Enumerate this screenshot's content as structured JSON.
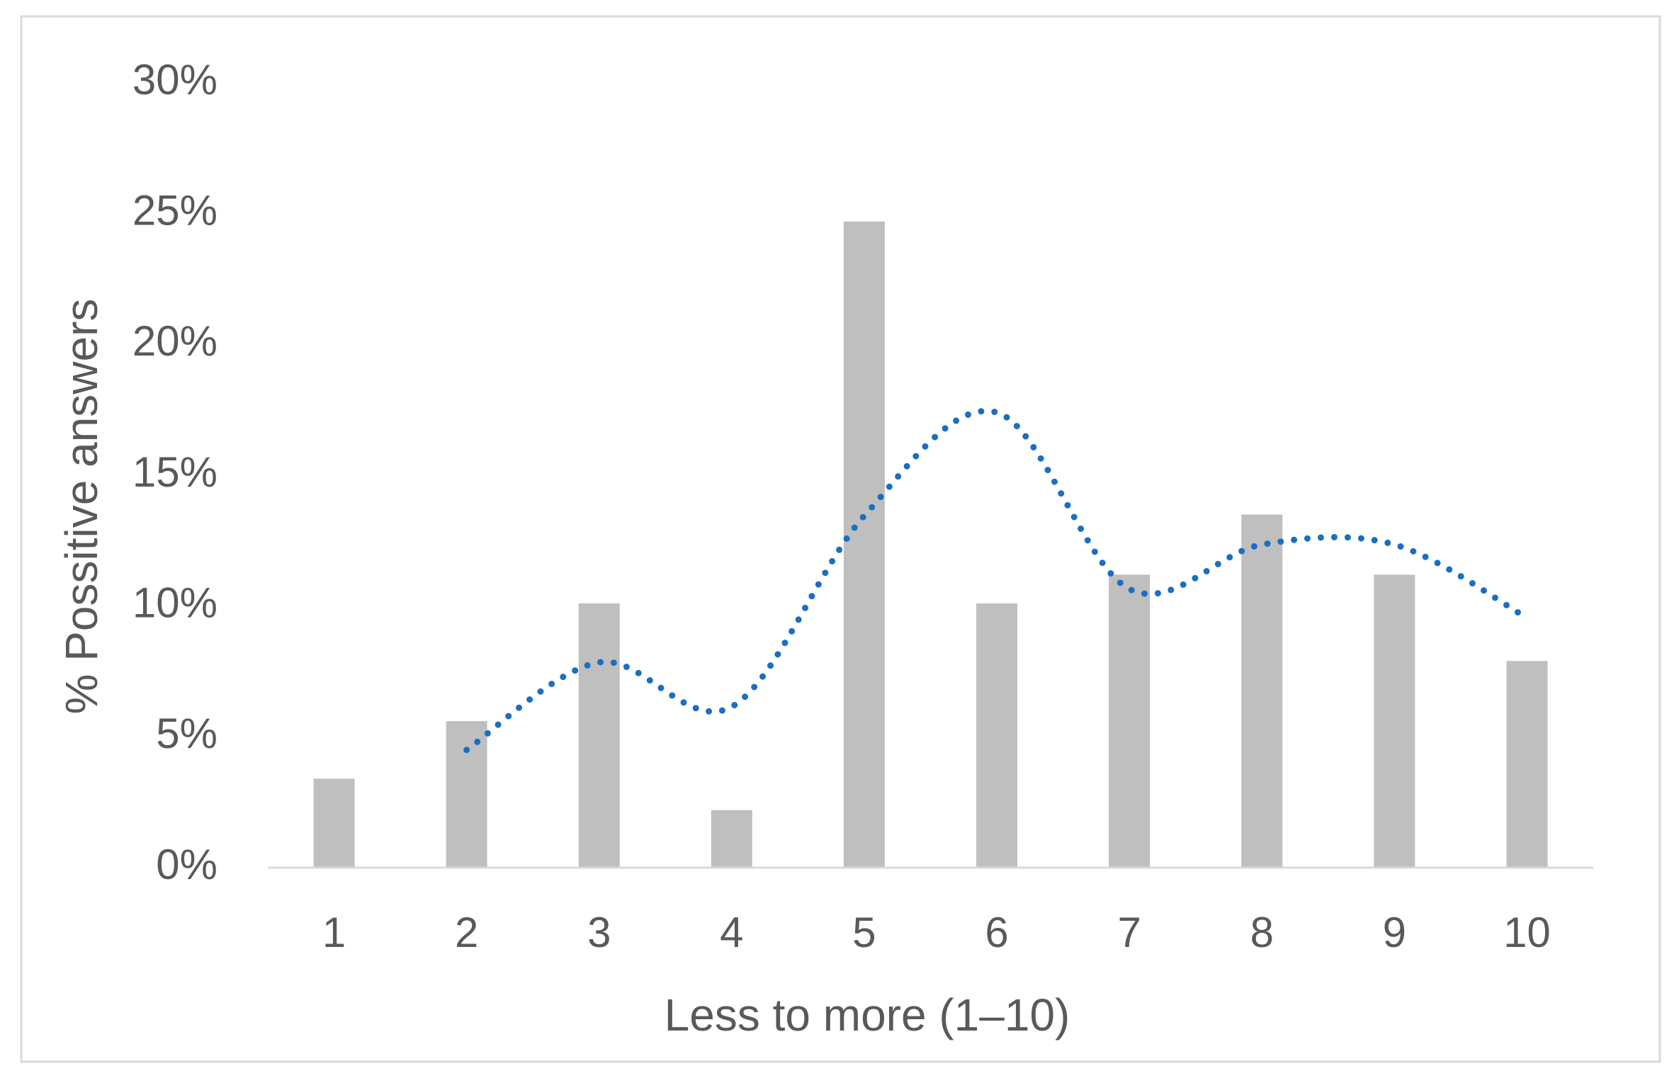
{
  "chart_data": {
    "type": "bar",
    "x_label": "Less to more (1–10)",
    "y_label": "% Possitive answers",
    "categories": [
      "1",
      "2",
      "3",
      "4",
      "5",
      "6",
      "7",
      "8",
      "9",
      "10"
    ],
    "series": [
      {
        "type": "bar",
        "color": "#bfbfbf",
        "values": [
          3.4,
          5.6,
          10.1,
          2.2,
          24.7,
          10.1,
          11.2,
          13.5,
          11.2,
          7.9
        ]
      },
      {
        "type": "line",
        "color": "#1b6ec2",
        "values": [
          null,
          4.5,
          7.85,
          6.15,
          13.45,
          17.4,
          10.65,
          12.35,
          12.35,
          9.55
        ]
      }
    ],
    "ylim": [
      0,
      30
    ],
    "yticks": [
      {
        "value": 0,
        "label": "0%"
      },
      {
        "value": 5,
        "label": "5%"
      },
      {
        "value": 10,
        "label": "10%"
      },
      {
        "value": 15,
        "label": "15%"
      },
      {
        "value": 20,
        "label": "20%"
      },
      {
        "value": 25,
        "label": "25%"
      },
      {
        "value": 30,
        "label": "30%"
      }
    ],
    "grid": false
  }
}
